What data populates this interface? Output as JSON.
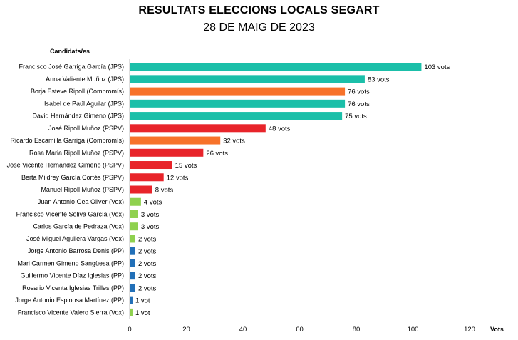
{
  "colors": {
    "JPS": "#1BBFA9",
    "Compromís": "#F7722A",
    "PSPV": "#E8242A",
    "Vox": "#8FD14F",
    "PP": "#2270B8",
    "axis": "#BFBFBF"
  },
  "chart_data": {
    "type": "bar",
    "orientation": "horizontal",
    "title": "RESULTATS ELECCIONS LOCALS SEGART",
    "subtitle": "28 DE MAIG DE 2023",
    "ylabel": "Candidats/es",
    "xlabel": "Vots",
    "xlim": [
      0,
      120
    ],
    "xticks": [
      0,
      20,
      40,
      60,
      80,
      100,
      120
    ],
    "grid": false,
    "categories": [
      "Francisco José Garriga García (JPS)",
      "Anna Valiente Muñoz (JPS)",
      "Borja Esteve Ripoll (Compromís)",
      "Isabel de Paül Aguilar (JPS)",
      "David Hernández Gimeno (JPS)",
      "José Ripoll Muñoz (PSPV)",
      "Ricardo Escamilla Garriga (Compromís)",
      "Rosa Maria Ripoll Muñoz (PSPV)",
      "José Vicente Hernández Gimeno (PSPV)",
      "Berta Mildrey García Cortés (PSPV)",
      "Manuel Ripoll Muñoz (PSPV)",
      "Juan Antonio Gea Oliver (Vox)",
      "Francisco Vicente Soliva García (Vox)",
      "Carlos García de Pedraza (Vox)",
      "José Miguel Aguilera Vargas (Vox)",
      "Jorge Antonio Barrosa Denis (PP)",
      "Mari Carmen Gimeno Sangüesa (PP)",
      "Guillermo Vicente Díaz Iglesias (PP)",
      "Rosario Vicenta Iglesias Trilles (PP)",
      "Jorge Antonio Espinosa Martínez (PP)",
      "Francisco Vicente Valero Sierra (Vox)"
    ],
    "values": [
      103,
      83,
      76,
      76,
      75,
      48,
      32,
      26,
      15,
      12,
      8,
      4,
      3,
      3,
      2,
      2,
      2,
      2,
      2,
      1,
      1
    ],
    "parties": [
      "JPS",
      "JPS",
      "Compromís",
      "JPS",
      "JPS",
      "PSPV",
      "Compromís",
      "PSPV",
      "PSPV",
      "PSPV",
      "PSPV",
      "Vox",
      "Vox",
      "Vox",
      "Vox",
      "PP",
      "PP",
      "PP",
      "PP",
      "PP",
      "Vox"
    ],
    "data_labels": [
      "103 vots",
      "83 vots",
      "76 vots",
      "76 vots",
      "75 vots",
      "48 vots",
      "32 vots",
      "26 vots",
      "15 vots",
      "12 vots",
      "8 vots",
      "4 vots",
      "3 vots",
      "3 vots",
      "2 vots",
      "2 vots",
      "2 vots",
      "2 vots",
      "2 vots",
      "1 vot",
      "1 vot"
    ]
  }
}
